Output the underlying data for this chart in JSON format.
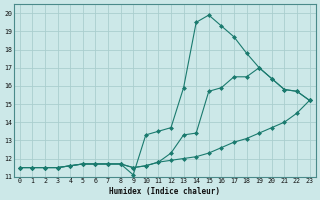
{
  "title": "",
  "xlabel": "Humidex (Indice chaleur)",
  "ylabel": "",
  "bg_color": "#cce8e8",
  "grid_color": "#aacece",
  "line_color": "#1a7a6e",
  "xlim": [
    -0.5,
    23.5
  ],
  "ylim": [
    11.0,
    20.5
  ],
  "yticks": [
    11,
    12,
    13,
    14,
    15,
    16,
    17,
    18,
    19,
    20
  ],
  "xticks": [
    0,
    1,
    2,
    3,
    4,
    5,
    6,
    7,
    8,
    9,
    10,
    11,
    12,
    13,
    14,
    15,
    16,
    17,
    18,
    19,
    20,
    21,
    22,
    23
  ],
  "line1_x": [
    0,
    1,
    2,
    3,
    4,
    5,
    6,
    7,
    8,
    9,
    10,
    11,
    12,
    13,
    14,
    15,
    16,
    17,
    18,
    19,
    20,
    21,
    22,
    23
  ],
  "line1_y": [
    11.5,
    11.5,
    11.5,
    11.5,
    11.6,
    11.7,
    11.7,
    11.7,
    11.7,
    11.5,
    11.6,
    11.8,
    12.3,
    13.3,
    13.4,
    15.7,
    15.9,
    16.5,
    16.5,
    17.0,
    16.4,
    15.8,
    15.7,
    15.2
  ],
  "line2_x": [
    0,
    1,
    2,
    3,
    4,
    5,
    6,
    7,
    8,
    9,
    10,
    11,
    12,
    13,
    14,
    15,
    16,
    17,
    18,
    19,
    20,
    21,
    22,
    23
  ],
  "line2_y": [
    11.5,
    11.5,
    11.5,
    11.5,
    11.6,
    11.7,
    11.7,
    11.7,
    11.7,
    11.1,
    13.3,
    13.5,
    13.7,
    15.9,
    19.5,
    19.9,
    19.3,
    18.7,
    17.8,
    17.0,
    16.4,
    15.8,
    15.7,
    15.2
  ],
  "line3_x": [
    0,
    1,
    2,
    3,
    4,
    5,
    6,
    7,
    8,
    9,
    10,
    11,
    12,
    13,
    14,
    15,
    16,
    17,
    18,
    19,
    20,
    21,
    22,
    23
  ],
  "line3_y": [
    11.5,
    11.5,
    11.5,
    11.5,
    11.6,
    11.7,
    11.7,
    11.7,
    11.7,
    11.5,
    11.6,
    11.8,
    11.9,
    12.0,
    12.1,
    12.3,
    12.6,
    12.9,
    13.1,
    13.4,
    13.7,
    14.0,
    14.5,
    15.2
  ]
}
